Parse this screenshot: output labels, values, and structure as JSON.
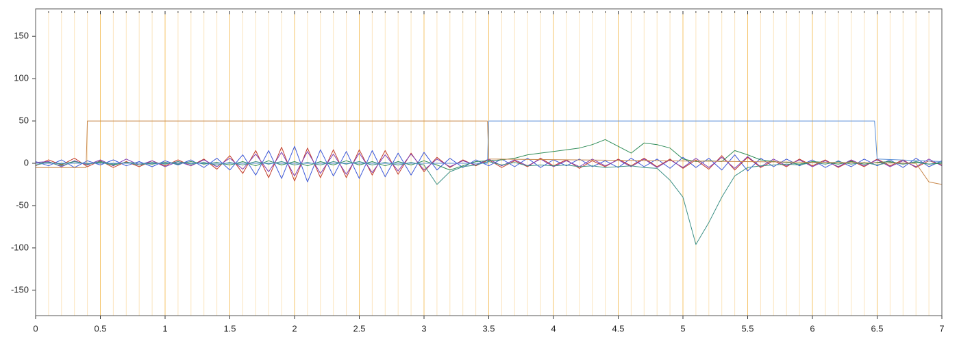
{
  "chart_data": {
    "type": "line",
    "xlim": [
      0,
      7
    ],
    "ylim": [
      -180,
      180
    ],
    "xticks": [
      0,
      0.5,
      1,
      1.5,
      2,
      2.5,
      3,
      3.5,
      4,
      4.5,
      5,
      5.5,
      6,
      6.5,
      7
    ],
    "x_minor_ticks": [
      0.1,
      0.2,
      0.3,
      0.4,
      0.6,
      0.7,
      0.8,
      0.9,
      1.1,
      1.2,
      1.3,
      1.4,
      1.6,
      1.7,
      1.8,
      1.9,
      2.1,
      2.2,
      2.3,
      2.4,
      2.6,
      2.7,
      2.8,
      2.9,
      3.1,
      3.2,
      3.3,
      3.4,
      3.6,
      3.7,
      3.8,
      3.9,
      4.1,
      4.2,
      4.3,
      4.4,
      4.6,
      4.7,
      4.8,
      4.9,
      5.1,
      5.2,
      5.3,
      5.4,
      5.6,
      5.7,
      5.8,
      5.9,
      6.1,
      6.2,
      6.3,
      6.4,
      6.6,
      6.7,
      6.8,
      6.9
    ],
    "yticks": [
      -150,
      -100,
      -50,
      0,
      50,
      100,
      150
    ],
    "grid": true,
    "grid_color": "#f5c46a",
    "minor_grid_color": "#fbe4bd",
    "x": [
      0,
      0.1,
      0.2,
      0.3,
      0.4,
      0.5,
      0.6,
      0.7,
      0.8,
      0.9,
      1,
      1.1,
      1.2,
      1.3,
      1.4,
      1.5,
      1.6,
      1.7,
      1.8,
      1.9,
      2,
      2.1,
      2.2,
      2.3,
      2.4,
      2.5,
      2.6,
      2.7,
      2.8,
      2.9,
      3,
      3.1,
      3.2,
      3.3,
      3.4,
      3.5,
      3.6,
      3.7,
      3.8,
      3.9,
      4,
      4.1,
      4.2,
      4.3,
      4.4,
      4.5,
      4.6,
      4.7,
      4.8,
      4.9,
      5,
      5.1,
      5.2,
      5.3,
      5.4,
      5.5,
      5.6,
      5.7,
      5.8,
      5.9,
      6,
      6.1,
      6.2,
      6.3,
      6.4,
      6.5,
      6.6,
      6.7,
      6.8,
      6.9,
      7
    ],
    "series": [
      {
        "color": "#3a56d8",
        "values": [
          2,
          -3,
          4,
          -5,
          3,
          -2,
          4,
          -3,
          2,
          -4,
          3,
          -2,
          4,
          -5,
          6,
          -8,
          10,
          -14,
          15,
          -18,
          20,
          -22,
          16,
          -15,
          14,
          -18,
          15,
          -16,
          12,
          -14,
          13,
          -8,
          6,
          -5,
          4,
          -3,
          5,
          -4,
          6,
          -5,
          4,
          -3,
          5,
          -4,
          3,
          -5,
          6,
          -4,
          5,
          -6,
          7,
          -5,
          6,
          -8,
          10,
          -9,
          6,
          -4,
          5,
          -3,
          4,
          -5,
          3,
          -4,
          5,
          -3,
          4,
          -5,
          6,
          -4,
          3
        ]
      },
      {
        "color": "#c0392b",
        "values": [
          -3,
          4,
          -2,
          6,
          -4,
          3,
          -5,
          2,
          -4,
          3,
          -3,
          4,
          -3,
          5,
          -7,
          9,
          -12,
          15,
          -17,
          19,
          -21,
          18,
          -17,
          16,
          -17,
          16,
          -14,
          15,
          -13,
          12,
          -10,
          7,
          -5,
          4,
          -3,
          4,
          -5,
          3,
          -4,
          6,
          -3,
          4,
          -6,
          3,
          -4,
          5,
          -3,
          6,
          -4,
          5,
          -6,
          4,
          -7,
          9,
          -8,
          7,
          -5,
          3,
          -4,
          5,
          -3,
          4,
          -5,
          3,
          -4,
          5,
          -3,
          4,
          -5,
          3,
          -2
        ]
      },
      {
        "color": "#7d3cb5",
        "values": [
          1,
          2,
          -4,
          3,
          -2,
          4,
          -3,
          5,
          -2,
          3,
          -4,
          2,
          -3,
          4,
          -4,
          6,
          -7,
          11,
          -10,
          13,
          -15,
          14,
          -12,
          11,
          -13,
          12,
          -11,
          10,
          -9,
          11,
          -8,
          5,
          -4,
          3,
          -2,
          5,
          -3,
          4,
          -3,
          5,
          -4,
          3,
          -4,
          5,
          -3,
          4,
          -4,
          5,
          -5,
          4,
          -5,
          6,
          -5,
          7,
          -6,
          8,
          -4,
          5,
          -3,
          4,
          -4,
          3,
          -4,
          4,
          -3,
          4,
          -4,
          3,
          -4,
          5,
          -3
        ]
      },
      {
        "color": "#2e8b57",
        "values": [
          0,
          1,
          -1,
          2,
          -1,
          1,
          -2,
          1,
          0,
          -1,
          1,
          -1,
          2,
          -1,
          1,
          -2,
          2,
          -3,
          3,
          -2,
          2,
          -3,
          2,
          -2,
          3,
          -2,
          2,
          -3,
          2,
          -2,
          3,
          -2,
          -8,
          -3,
          2,
          3,
          4,
          6,
          10,
          12,
          14,
          16,
          18,
          22,
          28,
          20,
          12,
          24,
          22,
          18,
          5,
          2,
          3,
          2,
          15,
          10,
          4,
          2,
          1,
          -1,
          2,
          1,
          -1,
          2,
          -1,
          1,
          2,
          -1,
          1,
          -1,
          0
        ]
      },
      {
        "color": "#3a8f85",
        "values": [
          -2,
          1,
          -3,
          2,
          -1,
          2,
          -1,
          1,
          -2,
          1,
          -1,
          2,
          -1,
          1,
          -2,
          1,
          -2,
          2,
          -1,
          2,
          -2,
          1,
          -2,
          2,
          -1,
          2,
          -2,
          1,
          -2,
          1,
          -2,
          -25,
          -10,
          -4,
          -2,
          2,
          -2,
          1,
          -3,
          -2,
          -3,
          -2,
          -4,
          -3,
          -5,
          -4,
          -3,
          -5,
          -6,
          -20,
          -40,
          -96,
          -70,
          -40,
          -15,
          -5,
          -3,
          -2,
          -1,
          -2,
          1,
          -1,
          2,
          -1,
          1,
          -2,
          1,
          -1,
          2,
          -1,
          1
        ]
      },
      {
        "color": "#c8874a",
        "x": [
          0,
          0.39,
          0.4,
          3.49,
          3.5,
          6.8,
          6.9,
          7
        ],
        "values": [
          -5,
          -5,
          50,
          50,
          5,
          0,
          -22,
          -25
        ]
      },
      {
        "color": "#5b8fd6",
        "x": [
          0,
          3.49,
          3.5,
          6.48,
          6.5,
          7
        ],
        "values": [
          0,
          0,
          50,
          50,
          5,
          2
        ]
      }
    ]
  }
}
